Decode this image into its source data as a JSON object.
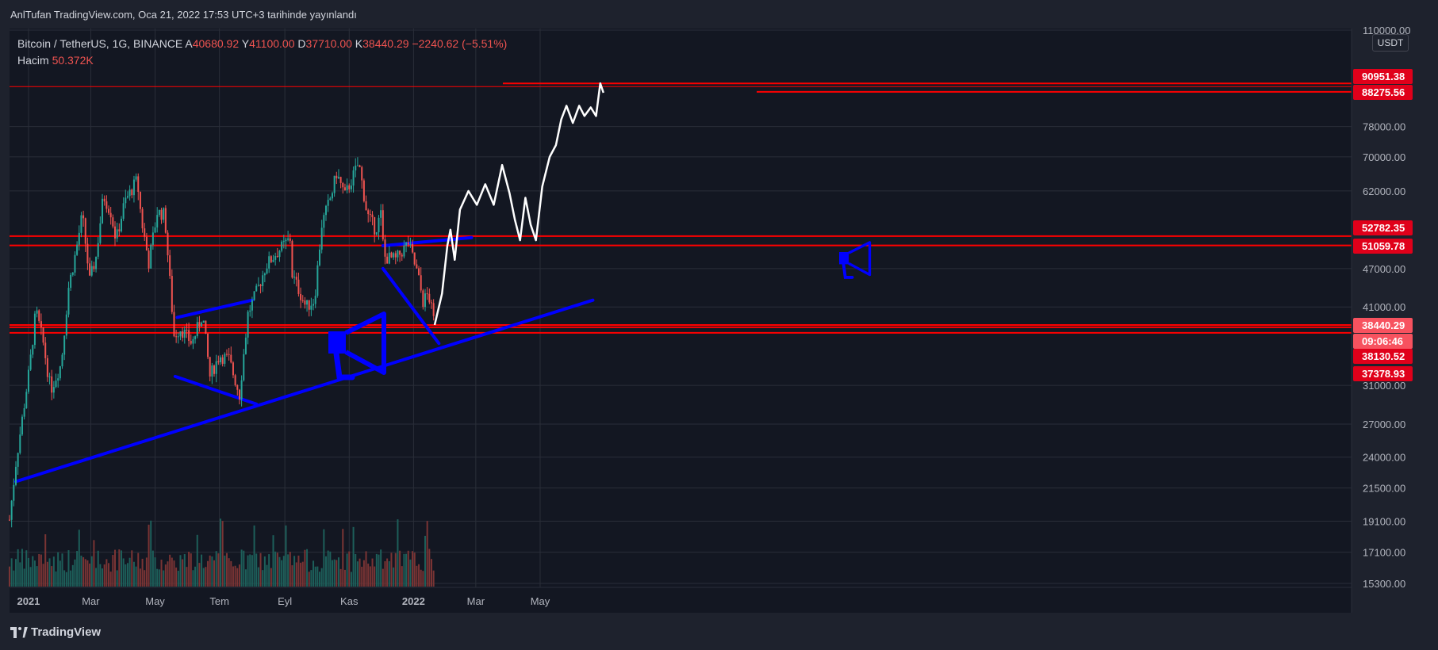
{
  "header": {
    "publish_line": "AnlTufan TradingView.com, Oca 21, 2022 17:53 UTC+3 tarihinde yayınlandı"
  },
  "legend": {
    "symbol": "Bitcoin / TetherUS, 1G, BINANCE",
    "open_label": "A",
    "open_value": "40680.92",
    "high_label": "Y",
    "high_value": "41100.00",
    "low_label": "D",
    "low_value": "37710.00",
    "close_label": "K",
    "close_value": "38440.29",
    "change": "−2240.62 (−5.51%)",
    "volume_label": "Hacim",
    "volume_value": "50.372K"
  },
  "currency": "USDT",
  "brand": "TradingView",
  "colors": {
    "background": "#131722",
    "grid": "#2a2e39",
    "up": "#26a69a",
    "down": "#ef5350",
    "horizontal_lines": "#ff0000",
    "trendlines": "#0000ff",
    "projection": "#ffffff",
    "label_red": "#e0001a",
    "label_light": "#f7525f"
  },
  "chart_data": {
    "type": "candlestick",
    "y_scale": "log",
    "ylim": [
      15300,
      110000
    ],
    "y_ticks": [
      "110000.00",
      "78000.00",
      "70000.00",
      "62000.00",
      "47000.00",
      "41000.00",
      "31000.00",
      "27000.00",
      "24000.00",
      "21500.00",
      "19100.00",
      "17100.00",
      "15300.00"
    ],
    "x_ticks": [
      "2021",
      "Mar",
      "May",
      "Tem",
      "Eyl",
      "Kas",
      "2022",
      "Mar",
      "May"
    ],
    "price_labels": [
      {
        "text": "90951.38",
        "value": 90951.38,
        "style": "red"
      },
      {
        "text": "88275.56",
        "value": 88275.56,
        "style": "red"
      },
      {
        "text": "52782.35",
        "value": 52782.35,
        "style": "red"
      },
      {
        "text": "51059.78",
        "value": 51059.78,
        "style": "red"
      },
      {
        "text": "38440.29",
        "value": 38440.29,
        "style": "light"
      },
      {
        "text": "09:06:46",
        "value": null,
        "style": "light"
      },
      {
        "text": "38130.52",
        "value": 38130.52,
        "style": "red"
      },
      {
        "text": "37378.93",
        "value": 37378.93,
        "style": "red"
      }
    ],
    "horizontal_levels": [
      90951.38,
      88275.56,
      52782.35,
      51059.78,
      38440.29,
      38130.52,
      37378.93
    ],
    "price_path": [
      [
        "2020-12-14",
        19200
      ],
      [
        "2020-12-20",
        23500
      ],
      [
        "2021-01-02",
        33000
      ],
      [
        "2021-01-08",
        40500
      ],
      [
        "2021-01-15",
        36000
      ],
      [
        "2021-01-22",
        30500
      ],
      [
        "2021-02-01",
        33500
      ],
      [
        "2021-02-08",
        44000
      ],
      [
        "2021-02-15",
        50000
      ],
      [
        "2021-02-21",
        57000
      ],
      [
        "2021-02-28",
        45000
      ],
      [
        "2021-03-06",
        49000
      ],
      [
        "2021-03-13",
        61000
      ],
      [
        "2021-03-20",
        57500
      ],
      [
        "2021-03-25",
        52000
      ],
      [
        "2021-04-02",
        59500
      ],
      [
        "2021-04-14",
        64500
      ],
      [
        "2021-04-18",
        56000
      ],
      [
        "2021-04-25",
        48000
      ],
      [
        "2021-05-03",
        57500
      ],
      [
        "2021-05-10",
        57000
      ],
      [
        "2021-05-13",
        49500
      ],
      [
        "2021-05-19",
        37000
      ],
      [
        "2021-05-25",
        38000
      ],
      [
        "2021-06-05",
        36000
      ],
      [
        "2021-06-15",
        40000
      ],
      [
        "2021-06-22",
        32000
      ],
      [
        "2021-07-01",
        34500
      ],
      [
        "2021-07-10",
        34000
      ],
      [
        "2021-07-20",
        30000
      ],
      [
        "2021-07-28",
        40000
      ],
      [
        "2021-08-07",
        44000
      ],
      [
        "2021-08-14",
        47500
      ],
      [
        "2021-08-23",
        49500
      ],
      [
        "2021-09-07",
        52500
      ],
      [
        "2021-09-08",
        46000
      ],
      [
        "2021-09-21",
        41000
      ],
      [
        "2021-09-29",
        42000
      ],
      [
        "2021-10-06",
        55000
      ],
      [
        "2021-10-15",
        61000
      ],
      [
        "2021-10-20",
        66000
      ],
      [
        "2021-10-28",
        61000
      ],
      [
        "2021-11-10",
        68500
      ],
      [
        "2021-11-18",
        57000
      ],
      [
        "2021-11-26",
        54000
      ],
      [
        "2021-12-01",
        57000
      ],
      [
        "2021-12-04",
        49000
      ],
      [
        "2021-12-15",
        48500
      ],
      [
        "2021-12-27",
        51500
      ],
      [
        "2022-01-05",
        46000
      ],
      [
        "2022-01-10",
        41800
      ],
      [
        "2022-01-15",
        43000
      ],
      [
        "2022-01-21",
        38440
      ]
    ],
    "projection_path": [
      [
        "2022-01-21",
        38440
      ],
      [
        "2022-01-28",
        43000
      ],
      [
        "2022-02-02",
        51000
      ],
      [
        "2022-02-05",
        54000
      ],
      [
        "2022-02-09",
        48500
      ],
      [
        "2022-02-14",
        58000
      ],
      [
        "2022-02-22",
        62000
      ],
      [
        "2022-03-02",
        59000
      ],
      [
        "2022-03-10",
        63500
      ],
      [
        "2022-03-18",
        59000
      ],
      [
        "2022-03-26",
        68000
      ],
      [
        "2022-04-02",
        61500
      ],
      [
        "2022-04-07",
        56000
      ],
      [
        "2022-04-12",
        52000
      ],
      [
        "2022-04-17",
        60500
      ],
      [
        "2022-04-22",
        55000
      ],
      [
        "2022-04-27",
        52000
      ],
      [
        "2022-05-03",
        63000
      ],
      [
        "2022-05-10",
        70000
      ],
      [
        "2022-05-16",
        73000
      ],
      [
        "2022-05-21",
        80000
      ],
      [
        "2022-05-26",
        84000
      ],
      [
        "2022-06-01",
        79000
      ],
      [
        "2022-06-07",
        84000
      ],
      [
        "2022-06-12",
        81000
      ],
      [
        "2022-06-18",
        83500
      ],
      [
        "2022-06-23",
        81000
      ],
      [
        "2022-06-27",
        91000
      ],
      [
        "2022-06-30",
        88000
      ]
    ],
    "trendlines": [
      {
        "from": [
          "2020-12-20",
          22000
        ],
        "to": [
          "2022-06-20",
          42000
        ]
      },
      {
        "from": [
          "2021-05-20",
          32000
        ],
        "to": [
          "2021-08-05",
          29000
        ]
      },
      {
        "from": [
          "2021-05-22",
          39500
        ],
        "to": [
          "2021-08-01",
          42000
        ]
      },
      {
        "from": [
          "2021-12-03",
          47000
        ],
        "to": [
          "2022-01-25",
          36000
        ]
      },
      {
        "from": [
          "2021-12-03",
          51000
        ],
        "to": [
          "2022-02-25",
          52500
        ]
      }
    ]
  }
}
